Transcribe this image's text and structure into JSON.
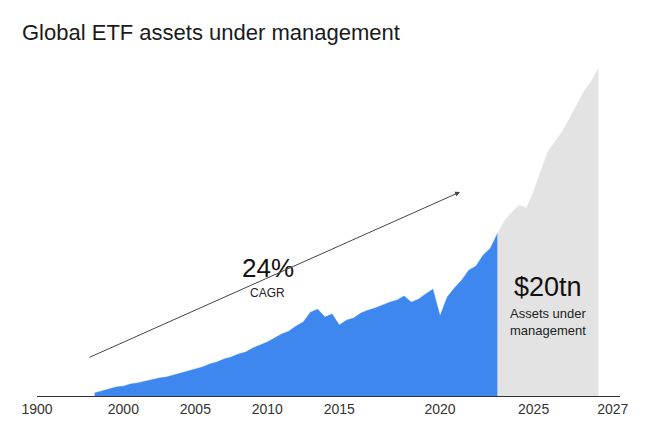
{
  "chart_data": {
    "type": "area",
    "title": "Global ETF assets under management",
    "categories": [
      "1900",
      null,
      null,
      null,
      null,
      null,
      null,
      null,
      null,
      null,
      null,
      null,
      "2000",
      null,
      null,
      null,
      null,
      null,
      null,
      null,
      null,
      null,
      "2005",
      null,
      null,
      null,
      null,
      null,
      null,
      null,
      null,
      null,
      "2010",
      null,
      null,
      null,
      null,
      null,
      null,
      null,
      null,
      null,
      "2015",
      null,
      null,
      null,
      null,
      null,
      null,
      null,
      null,
      null,
      null,
      null,
      null,
      null,
      "2020",
      null,
      null,
      null,
      null,
      null,
      null,
      null,
      null,
      null,
      null,
      null,
      null,
      "2025",
      null,
      null,
      null,
      null,
      null,
      null,
      null,
      null,
      null,
      null,
      "2027"
    ],
    "series": [
      {
        "color": "#3d87ee",
        "values": [
          null,
          null,
          null,
          null,
          null,
          null,
          null,
          null,
          0.18,
          0.3,
          0.43,
          0.55,
          0.6,
          0.73,
          0.8,
          0.91,
          0.98,
          1.1,
          1.16,
          1.28,
          1.4,
          1.52,
          1.65,
          1.77,
          1.95,
          2.07,
          2.26,
          2.38,
          2.56,
          2.68,
          2.93,
          3.11,
          3.29,
          3.54,
          3.78,
          3.96,
          4.27,
          4.51,
          5.12,
          5.3,
          4.82,
          5.0,
          4.33,
          4.63,
          4.76,
          5.06,
          5.24,
          5.37,
          5.55,
          5.73,
          5.85,
          6.1,
          5.73,
          5.91,
          6.22,
          6.52,
          4.88,
          6.04,
          6.59,
          7.07,
          7.68,
          7.93,
          8.6,
          9.02,
          9.94,
          null,
          null,
          null,
          null,
          null,
          null,
          null,
          null,
          null,
          null,
          null,
          null,
          null,
          null,
          null,
          null
        ]
      },
      {
        "color": "#e3e3e3",
        "values": [
          null,
          null,
          null,
          null,
          null,
          null,
          null,
          null,
          null,
          null,
          null,
          null,
          null,
          null,
          null,
          null,
          null,
          null,
          null,
          null,
          null,
          null,
          null,
          null,
          null,
          null,
          null,
          null,
          null,
          null,
          null,
          null,
          null,
          null,
          null,
          null,
          null,
          null,
          null,
          null,
          null,
          null,
          null,
          null,
          null,
          null,
          null,
          null,
          null,
          null,
          null,
          null,
          null,
          null,
          null,
          null,
          null,
          null,
          null,
          null,
          null,
          null,
          null,
          null,
          9.94,
          10.73,
          11.22,
          11.65,
          11.46,
          12.5,
          13.72,
          14.94,
          15.55,
          16.16,
          16.95,
          17.8,
          18.6,
          19.2,
          20.0,
          null,
          null
        ]
      }
    ],
    "ylim": [
      0,
      21
    ],
    "tick_labels": "x",
    "grid": false,
    "annotations": [
      {
        "text": "24%"
      },
      {
        "text": "CAGR"
      },
      {
        "text": "$20tn"
      },
      {
        "text": "Assets under\nmanagement"
      }
    ]
  }
}
